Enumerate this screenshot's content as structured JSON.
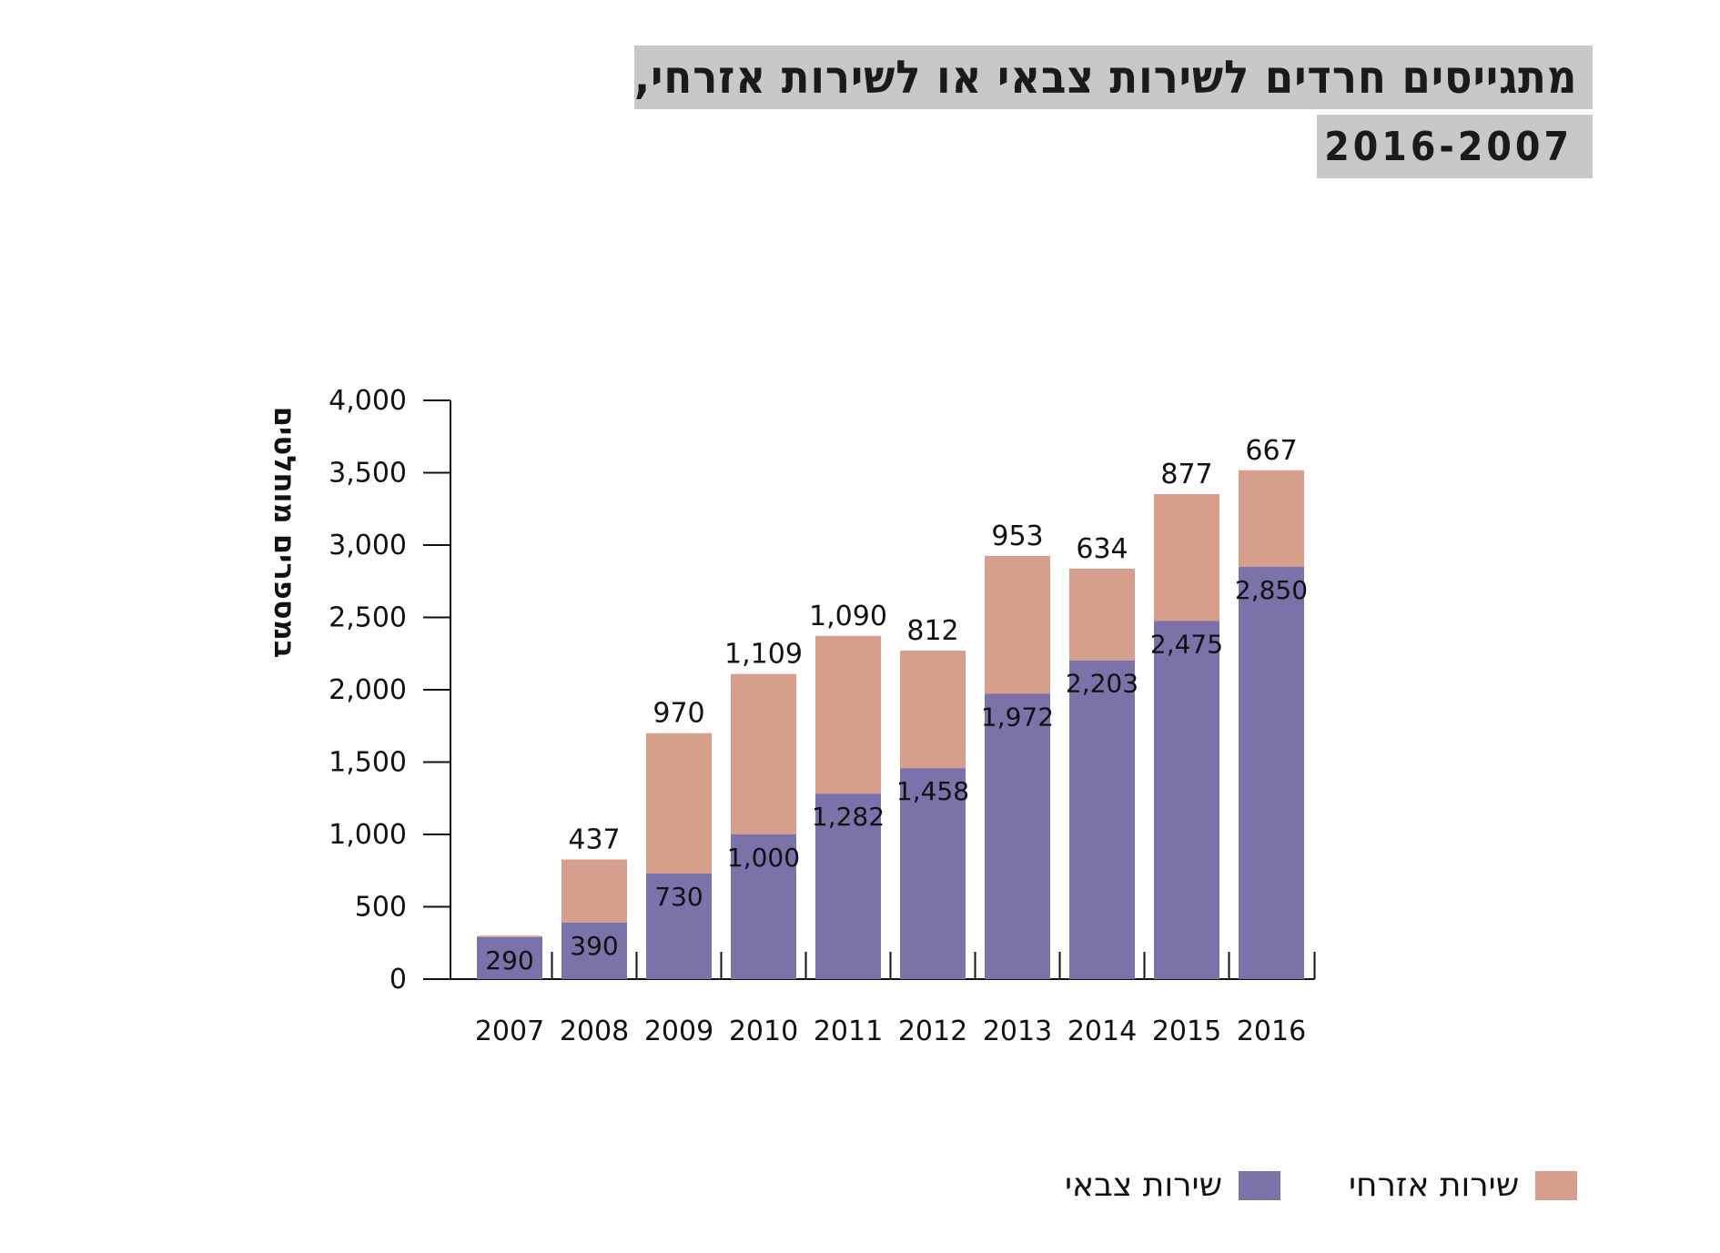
{
  "title": {
    "line1": "מתגייסים חרדים לשירות צבאי או לשירות אזרחי,",
    "line2": "2016-2007"
  },
  "colors": {
    "military": "#7a72a8",
    "civil": "#d69f8c",
    "title_bg": "#c8c8c8"
  },
  "legend": {
    "military": "שירות צבאי",
    "civil": "שירות אזרחי"
  },
  "chart_data": {
    "type": "bar",
    "stacked": true,
    "categories": [
      "2007",
      "2008",
      "2009",
      "2010",
      "2011",
      "2012",
      "2013",
      "2014",
      "2015",
      "2016"
    ],
    "series": [
      {
        "name": "שירות צבאי",
        "values": [
          290,
          390,
          730,
          1000,
          1282,
          1458,
          1972,
          2203,
          2475,
          2850
        ],
        "labels": [
          "290",
          "390",
          "730",
          "1,000",
          "1,282",
          "1,458",
          "1,972",
          "2,203",
          "2,475",
          "2,850"
        ]
      },
      {
        "name": "שירות אזרחי",
        "values": [
          10,
          437,
          970,
          1109,
          1090,
          812,
          953,
          634,
          877,
          667
        ],
        "labels": [
          "",
          "437",
          "970",
          "1,109",
          "1,090",
          "812",
          "953",
          "634",
          "877",
          "667"
        ]
      }
    ],
    "ylabel": "במספרים מוחלטים",
    "ylim": [
      0,
      4000
    ],
    "yticks": [
      0,
      500,
      1000,
      1500,
      2000,
      2500,
      3000,
      3500,
      4000
    ],
    "ytick_labels": [
      "0",
      "500",
      "1,000",
      "1,500",
      "2,000",
      "2,500",
      "3,000",
      "3,500",
      "4,000"
    ],
    "grid": false,
    "legend_position": "bottom-right"
  }
}
